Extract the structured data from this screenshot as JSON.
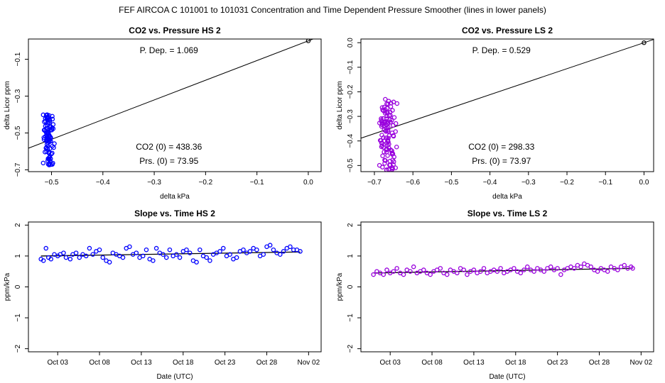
{
  "figure": {
    "suptitle": "FEF   AIRCOA C   101001 to 101031   Concentration and Time Dependent Pressure Smoother (lines in lower panels)"
  },
  "chart_data": [
    {
      "type": "scatter",
      "id": "hs-pressure",
      "title": "CO2 vs. Pressure HS 2",
      "xlabel": "delta kPa",
      "ylabel": "delta Licor ppm",
      "xlim": [
        -0.545,
        0.025
      ],
      "ylim": [
        -0.71,
        0.01
      ],
      "xticks": [
        -0.5,
        -0.4,
        -0.3,
        -0.2,
        -0.1,
        0.0
      ],
      "xtick_labels": [
        "−0.5",
        "−0.4",
        "−0.3",
        "−0.2",
        "−0.1",
        "0.0"
      ],
      "yticks": [
        -0.7,
        -0.5,
        -0.3,
        -0.1
      ],
      "ytick_labels": [
        "−0.7",
        "−0.5",
        "−0.3",
        "−0.1"
      ],
      "color": "#0000ff",
      "fit_line": {
        "slope": 1.069,
        "intercept": 0.0
      },
      "reference_point": [
        0.0,
        0.0
      ],
      "cluster": {
        "x_center": -0.505,
        "x_spread": 0.012,
        "y_min": -0.68,
        "y_max": -0.4,
        "n": 90,
        "seed": 11
      },
      "annotations": {
        "p_dep": "P. Dep. =  1.069",
        "co2_0": "CO2 (0) =  438.36",
        "prs_0": "Prs. (0) =  73.95"
      }
    },
    {
      "type": "scatter",
      "id": "ls-pressure",
      "title": "CO2 vs. Pressure LS 2",
      "xlabel": "delta kPa",
      "ylabel": "delta Licor ppm",
      "xlim": [
        -0.735,
        0.025
      ],
      "ylim": [
        -0.525,
        0.015
      ],
      "xticks": [
        -0.7,
        -0.6,
        -0.5,
        -0.4,
        -0.3,
        -0.2,
        -0.1,
        0.0
      ],
      "xtick_labels": [
        "−0.7",
        "−0.6",
        "−0.5",
        "−0.4",
        "−0.3",
        "−0.2",
        "−0.1",
        "0.0"
      ],
      "yticks": [
        -0.5,
        -0.4,
        -0.3,
        -0.2,
        -0.1,
        0.0
      ],
      "ytick_labels": [
        "−0.5",
        "−0.4",
        "−0.3",
        "−0.2",
        "−0.1",
        "0.0"
      ],
      "color": "#9900dd",
      "fit_line": {
        "slope": 0.529,
        "intercept": 0.0
      },
      "reference_point": [
        0.0,
        0.0
      ],
      "cluster": {
        "x_center": -0.665,
        "x_spread": 0.025,
        "y_min": -0.52,
        "y_max": -0.23,
        "n": 110,
        "seed": 23
      },
      "annotations": {
        "p_dep": "P. Dep. =  0.529",
        "co2_0": "CO2 (0) =  298.33",
        "prs_0": "Prs. (0) =  73.97"
      }
    },
    {
      "type": "line",
      "id": "hs-slope-time",
      "title": "Slope vs. Time HS 2",
      "xlabel": "Date (UTC)",
      "ylabel": "ppm/kPa",
      "xlim": [
        -1.5,
        33.5
      ],
      "ylim": [
        -2.1,
        2.1
      ],
      "xticks": [
        2,
        7,
        12,
        17,
        22,
        27,
        32
      ],
      "xtick_labels": [
        "Oct 03",
        "Oct 08",
        "Oct 13",
        "Oct 18",
        "Oct 23",
        "Oct 28",
        "Nov 02"
      ],
      "yticks": [
        -2,
        -1,
        0,
        1,
        2
      ],
      "ytick_labels": [
        "−2",
        "−1",
        "0",
        "1",
        "2"
      ],
      "color": "#0000ff",
      "smoother": {
        "x": [
          0,
          31
        ],
        "y": [
          1.0,
          1.13
        ]
      },
      "points_x": [
        0.0,
        0.3,
        0.6,
        0.9,
        1.2,
        1.6,
        2.0,
        2.3,
        2.7,
        3.0,
        3.5,
        3.8,
        4.2,
        4.6,
        5.0,
        5.4,
        5.8,
        6.2,
        6.6,
        7.0,
        7.4,
        7.8,
        8.2,
        8.6,
        9.0,
        9.4,
        9.8,
        10.2,
        10.6,
        11.0,
        11.4,
        11.8,
        12.2,
        12.6,
        13.0,
        13.4,
        13.8,
        14.2,
        14.6,
        15.0,
        15.4,
        15.8,
        16.2,
        16.6,
        17.0,
        17.4,
        17.8,
        18.2,
        18.6,
        19.0,
        19.4,
        19.8,
        20.2,
        20.6,
        21.0,
        21.4,
        21.8,
        22.2,
        22.6,
        23.0,
        23.4,
        23.8,
        24.2,
        24.6,
        25.0,
        25.4,
        25.8,
        26.2,
        26.6,
        27.0,
        27.4,
        27.8,
        28.2,
        28.6,
        29.0,
        29.4,
        29.8,
        30.2,
        30.6,
        31.0
      ],
      "points_y": [
        0.9,
        0.85,
        1.25,
        0.95,
        0.9,
        1.05,
        1.0,
        1.05,
        1.1,
        0.95,
        0.9,
        1.05,
        1.1,
        0.95,
        1.05,
        1.0,
        1.25,
        1.05,
        1.15,
        1.2,
        0.95,
        0.85,
        0.8,
        1.1,
        1.05,
        1.0,
        0.95,
        1.25,
        1.3,
        1.05,
        1.1,
        0.95,
        1.0,
        1.2,
        0.9,
        0.85,
        1.25,
        1.1,
        1.05,
        0.95,
        1.2,
        1.0,
        1.05,
        0.95,
        1.15,
        1.2,
        1.1,
        0.85,
        0.8,
        1.2,
        1.0,
        0.95,
        0.85,
        1.05,
        1.1,
        1.15,
        1.25,
        1.0,
        1.05,
        0.9,
        0.95,
        1.15,
        1.2,
        1.1,
        1.15,
        1.25,
        1.2,
        1.0,
        1.05,
        1.3,
        1.35,
        1.2,
        1.1,
        1.05,
        1.15,
        1.25,
        1.3,
        1.2,
        1.2,
        1.15
      ]
    },
    {
      "type": "line",
      "id": "ls-slope-time",
      "title": "Slope vs. Time LS 2",
      "xlabel": "Date (UTC)",
      "ylabel": "ppm/kPa",
      "xlim": [
        -1.5,
        33.5
      ],
      "ylim": [
        -2.1,
        2.1
      ],
      "xticks": [
        2,
        7,
        12,
        17,
        22,
        27,
        32
      ],
      "xtick_labels": [
        "Oct 03",
        "Oct 08",
        "Oct 13",
        "Oct 18",
        "Oct 23",
        "Oct 28",
        "Nov 02"
      ],
      "yticks": [
        -2,
        -1,
        0,
        1,
        2
      ],
      "ytick_labels": [
        "−2",
        "−1",
        "0",
        "1",
        "2"
      ],
      "color": "#9900dd",
      "smoother": {
        "x": [
          0,
          31
        ],
        "y": [
          0.45,
          0.6
        ]
      },
      "points_x": [
        0.0,
        0.4,
        0.8,
        1.2,
        1.6,
        2.0,
        2.4,
        2.8,
        3.2,
        3.6,
        4.0,
        4.4,
        4.8,
        5.2,
        5.6,
        6.0,
        6.4,
        6.8,
        7.2,
        7.6,
        8.0,
        8.4,
        8.8,
        9.2,
        9.6,
        10.0,
        10.4,
        10.8,
        11.2,
        11.6,
        12.0,
        12.4,
        12.8,
        13.2,
        13.6,
        14.0,
        14.4,
        14.8,
        15.2,
        15.6,
        16.0,
        16.4,
        16.8,
        17.2,
        17.6,
        18.0,
        18.4,
        18.8,
        19.2,
        19.6,
        20.0,
        20.4,
        20.8,
        21.2,
        21.6,
        22.0,
        22.4,
        22.8,
        23.2,
        23.6,
        24.0,
        24.4,
        24.8,
        25.2,
        25.6,
        26.0,
        26.4,
        26.8,
        27.2,
        27.6,
        28.0,
        28.4,
        28.8,
        29.2,
        29.6,
        30.0,
        30.4,
        30.8,
        31.0
      ],
      "points_y": [
        0.4,
        0.5,
        0.45,
        0.4,
        0.55,
        0.45,
        0.5,
        0.6,
        0.45,
        0.4,
        0.55,
        0.5,
        0.65,
        0.45,
        0.5,
        0.55,
        0.45,
        0.4,
        0.5,
        0.55,
        0.6,
        0.45,
        0.4,
        0.55,
        0.5,
        0.45,
        0.6,
        0.55,
        0.4,
        0.5,
        0.55,
        0.45,
        0.5,
        0.6,
        0.45,
        0.5,
        0.55,
        0.5,
        0.6,
        0.45,
        0.5,
        0.55,
        0.6,
        0.5,
        0.45,
        0.55,
        0.65,
        0.55,
        0.5,
        0.6,
        0.55,
        0.5,
        0.6,
        0.65,
        0.55,
        0.6,
        0.4,
        0.55,
        0.6,
        0.65,
        0.6,
        0.7,
        0.65,
        0.75,
        0.7,
        0.65,
        0.55,
        0.5,
        0.6,
        0.55,
        0.5,
        0.65,
        0.6,
        0.55,
        0.65,
        0.7,
        0.6,
        0.65,
        0.6
      ]
    }
  ]
}
